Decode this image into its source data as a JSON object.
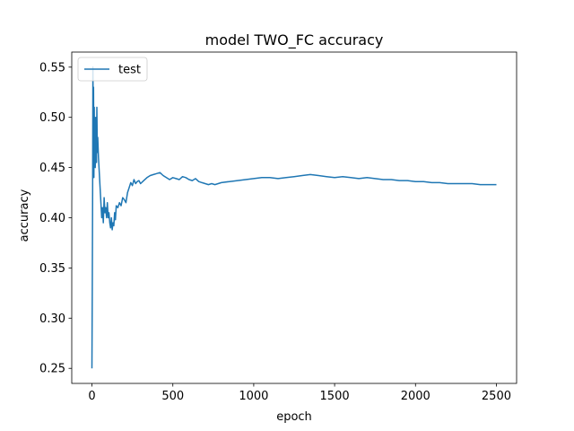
{
  "chart_data": {
    "type": "line",
    "title": "model TWO_FC accuracy",
    "xlabel": "epoch",
    "ylabel": "accuracy",
    "xlim": [
      -125,
      2625
    ],
    "ylim": [
      0.235,
      0.565
    ],
    "xticks": [
      0,
      500,
      1000,
      1500,
      2000,
      2500
    ],
    "yticks": [
      0.25,
      0.3,
      0.35,
      0.4,
      0.45,
      0.5,
      0.55
    ],
    "ytick_labels": [
      "0.25",
      "0.30",
      "0.35",
      "0.40",
      "0.45",
      "0.50",
      "0.55"
    ],
    "legend_position": "top-left",
    "grid": false,
    "series": [
      {
        "name": "test",
        "color": "#1f77b4",
        "x": [
          0,
          2,
          4,
          6,
          8,
          10,
          12,
          14,
          16,
          18,
          20,
          22,
          25,
          28,
          30,
          33,
          36,
          40,
          45,
          50,
          55,
          60,
          65,
          70,
          75,
          80,
          85,
          90,
          95,
          100,
          105,
          110,
          115,
          120,
          125,
          130,
          135,
          140,
          145,
          150,
          160,
          170,
          180,
          190,
          200,
          210,
          220,
          230,
          240,
          250,
          260,
          270,
          280,
          290,
          300,
          320,
          340,
          360,
          380,
          400,
          420,
          440,
          460,
          480,
          500,
          520,
          540,
          560,
          580,
          600,
          620,
          640,
          660,
          680,
          700,
          720,
          740,
          760,
          780,
          800,
          850,
          900,
          950,
          1000,
          1050,
          1100,
          1150,
          1200,
          1250,
          1300,
          1350,
          1400,
          1450,
          1500,
          1550,
          1600,
          1650,
          1700,
          1750,
          1800,
          1850,
          1900,
          1950,
          2000,
          2050,
          2100,
          2150,
          2200,
          2250,
          2300,
          2350,
          2400,
          2450,
          2500
        ],
        "values": [
          0.25,
          0.33,
          0.43,
          0.55,
          0.48,
          0.53,
          0.44,
          0.51,
          0.46,
          0.5,
          0.45,
          0.47,
          0.5,
          0.455,
          0.51,
          0.465,
          0.48,
          0.46,
          0.445,
          0.43,
          0.415,
          0.4,
          0.41,
          0.395,
          0.42,
          0.405,
          0.41,
          0.4,
          0.415,
          0.4,
          0.405,
          0.395,
          0.39,
          0.4,
          0.388,
          0.395,
          0.392,
          0.405,
          0.398,
          0.412,
          0.41,
          0.415,
          0.412,
          0.42,
          0.418,
          0.415,
          0.425,
          0.43,
          0.435,
          0.432,
          0.438,
          0.434,
          0.436,
          0.437,
          0.434,
          0.437,
          0.44,
          0.442,
          0.443,
          0.444,
          0.445,
          0.442,
          0.44,
          0.438,
          0.44,
          0.439,
          0.438,
          0.441,
          0.44,
          0.438,
          0.437,
          0.439,
          0.436,
          0.435,
          0.434,
          0.433,
          0.434,
          0.433,
          0.434,
          0.435,
          0.436,
          0.437,
          0.438,
          0.439,
          0.44,
          0.44,
          0.439,
          0.44,
          0.441,
          0.442,
          0.443,
          0.442,
          0.441,
          0.44,
          0.441,
          0.44,
          0.439,
          0.44,
          0.439,
          0.438,
          0.438,
          0.437,
          0.437,
          0.436,
          0.436,
          0.435,
          0.435,
          0.434,
          0.434,
          0.434,
          0.434,
          0.433,
          0.433,
          0.433
        ]
      }
    ]
  }
}
